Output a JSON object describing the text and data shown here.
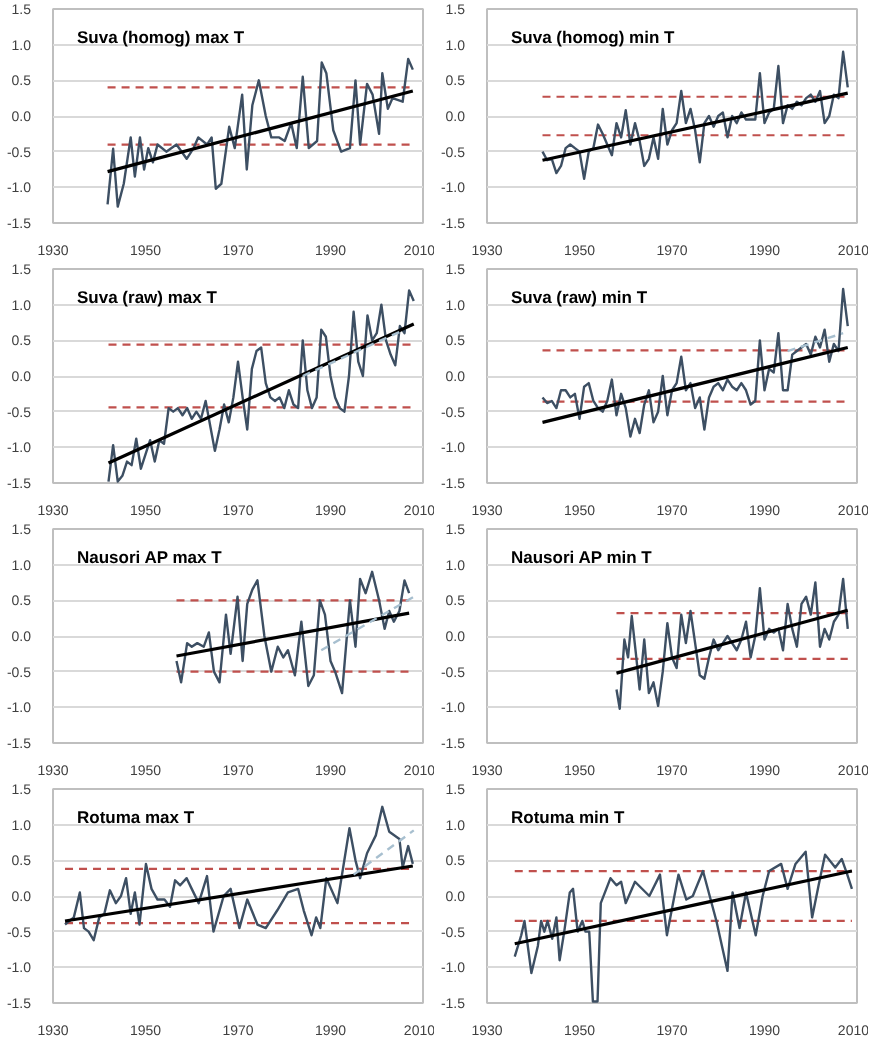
{
  "chart_data": [
    {
      "type": "line",
      "title": "Suva (homog) max T",
      "xlim": [
        1930,
        2010
      ],
      "xticks": [
        1930,
        1950,
        1970,
        1990,
        2010
      ],
      "ylim": [
        -1.5,
        1.5
      ],
      "yticks": [
        -1.5,
        {
          "value": -1,
          "label": "-1.0"
        },
        -0.5,
        {
          "value": 0,
          "label": "0.0"
        },
        0.5,
        {
          "value": 1,
          "label": "1.0"
        },
        1.5
      ],
      "grid": "y",
      "series": [
        {
          "color": "#3d4f63",
          "x": [
            1941.8,
            1943.0,
            1944.0,
            1945.3,
            1946.8,
            1947.7,
            1948.8,
            1949.7,
            1950.6,
            1951.6,
            1952.6,
            1954.5,
            1956.7,
            1958.9,
            1960.4,
            1961.4,
            1963.3,
            1964.3,
            1965.2,
            1966.4,
            1968.1,
            1969.3,
            1970.9,
            1971.9,
            1973.1,
            1974.5,
            1976.0,
            1977.2,
            1978.9,
            1980.1,
            1981.5,
            1982.7,
            1984.0,
            1985.3,
            1987.1,
            1988.1,
            1989.1,
            1990.6,
            1992.3,
            1994.2,
            1995.4,
            1996.4,
            1997.9,
            1999.1,
            2000.5,
            2001.2,
            2002.4,
            2003.4,
            2005.6,
            2006.8,
            2007.8
          ],
          "values": [
            -1.24,
            -0.46,
            -1.27,
            -0.95,
            -0.3,
            -0.85,
            -0.3,
            -0.75,
            -0.45,
            -0.65,
            -0.4,
            -0.5,
            -0.4,
            -0.6,
            -0.45,
            -0.3,
            -0.4,
            -0.3,
            -1.02,
            -0.95,
            -0.15,
            -0.45,
            0.3,
            -0.75,
            0.15,
            0.5,
            0.0,
            -0.3,
            -0.3,
            -0.35,
            -0.1,
            -0.45,
            0.55,
            -0.45,
            -0.35,
            0.75,
            0.6,
            -0.2,
            -0.5,
            -0.45,
            0.5,
            -0.4,
            0.45,
            0.3,
            -0.25,
            0.6,
            0.1,
            0.25,
            0.2,
            0.8,
            0.65
          ]
        },
        {
          "color": "#000000",
          "x": [
            1941.8,
            2007.8
          ],
          "values": [
            -0.78,
            0.35
          ]
        }
      ],
      "ref_lines": [
        {
          "axis": "y",
          "value": 0.4,
          "color": "#c0504d",
          "line_style": "dashed"
        },
        {
          "axis": "y",
          "value": -0.4,
          "color": "#c0504d",
          "line_style": "dashed"
        }
      ]
    },
    {
      "type": "line",
      "title": "Suva (homog) min T",
      "xlim": [
        1930,
        2010
      ],
      "xticks": [
        1930,
        1950,
        1970,
        1990,
        2010
      ],
      "ylim": [
        -1.5,
        1.5
      ],
      "yticks": [
        -1.5,
        {
          "value": -1,
          "label": "-1.0"
        },
        -0.5,
        {
          "value": 0,
          "label": "0.0"
        },
        0.5,
        {
          "value": 1,
          "label": "1.0"
        },
        1.5
      ],
      "grid": "y",
      "series": [
        {
          "color": "#3d4f63",
          "x": [
            1942,
            1943,
            1944,
            1945,
            1946,
            1947,
            1948,
            1949,
            1950,
            1951,
            1952,
            1953,
            1954,
            1955,
            1956,
            1957,
            1958,
            1959,
            1960,
            1961,
            1962,
            1963,
            1964,
            1965,
            1966,
            1967,
            1968,
            1969,
            1970,
            1971,
            1972,
            1973,
            1974,
            1975,
            1976,
            1977,
            1978,
            1979,
            1980,
            1981,
            1982,
            1983,
            1984,
            1985,
            1986,
            1987,
            1988,
            1989,
            1990,
            1991,
            1992,
            1993,
            1994,
            1995,
            1996,
            1997,
            1998,
            1999,
            2000,
            2001,
            2002,
            2003,
            2004,
            2005,
            2006,
            2007,
            2008
          ],
          "values": [
            -0.5,
            -0.62,
            -0.6,
            -0.8,
            -0.7,
            -0.45,
            -0.4,
            -0.45,
            -0.5,
            -0.88,
            -0.5,
            -0.45,
            -0.12,
            -0.25,
            -0.4,
            -0.55,
            -0.1,
            -0.3,
            0.08,
            -0.4,
            -0.1,
            -0.35,
            -0.7,
            -0.6,
            -0.3,
            -0.6,
            0.1,
            -0.4,
            -0.2,
            -0.1,
            0.35,
            -0.1,
            0.1,
            -0.2,
            -0.65,
            -0.1,
            0.0,
            -0.15,
            0.0,
            0.05,
            -0.3,
            0.0,
            -0.1,
            0.05,
            -0.05,
            -0.05,
            -0.05,
            0.6,
            -0.1,
            0.05,
            0.1,
            0.7,
            -0.1,
            0.15,
            0.1,
            0.2,
            0.15,
            0.25,
            0.3,
            0.2,
            0.35,
            -0.1,
            0.0,
            0.3,
            0.25,
            0.9,
            0.4
          ]
        },
        {
          "color": "#000000",
          "x": [
            1942,
            2008
          ],
          "values": [
            -0.62,
            0.32
          ]
        }
      ],
      "ref_lines": [
        {
          "axis": "y",
          "value": 0.27,
          "color": "#c0504d",
          "line_style": "dashed"
        },
        {
          "axis": "y",
          "value": -0.27,
          "color": "#c0504d",
          "line_style": "dashed"
        }
      ]
    },
    {
      "type": "line",
      "title": "Suva (raw) max T",
      "xlim": [
        1930,
        2010
      ],
      "xticks": [
        1930,
        1950,
        1970,
        1990,
        2010
      ],
      "ylim": [
        -1.5,
        1.5
      ],
      "yticks": [
        -1.5,
        {
          "value": -1,
          "label": "-1.0"
        },
        -0.5,
        {
          "value": 0,
          "label": "0.0"
        },
        0.5,
        {
          "value": 1,
          "label": "1.0"
        },
        1.5
      ],
      "grid": "y",
      "series": [
        {
          "color": "#3d4f63",
          "x": [
            1942,
            1943,
            1944,
            1945,
            1946,
            1947,
            1948,
            1949,
            1950,
            1951,
            1952,
            1953,
            1954,
            1955,
            1956,
            1957,
            1958,
            1959,
            1960,
            1961,
            1962,
            1963,
            1964,
            1965,
            1966,
            1967,
            1968,
            1969,
            1970,
            1971,
            1972,
            1973,
            1974,
            1975,
            1976,
            1977,
            1978,
            1979,
            1980,
            1981,
            1982,
            1983,
            1984,
            1985,
            1986,
            1987,
            1988,
            1989,
            1990,
            1991,
            1992,
            1993,
            1994,
            1995,
            1996,
            1997,
            1998,
            1999,
            2000,
            2001,
            2002,
            2003,
            2004,
            2005,
            2006,
            2007,
            2008
          ],
          "values": [
            -1.48,
            -0.97,
            -1.48,
            -1.4,
            -1.2,
            -1.25,
            -0.88,
            -1.3,
            -1.1,
            -0.9,
            -1.2,
            -0.9,
            -0.95,
            -0.45,
            -0.5,
            -0.45,
            -0.55,
            -0.45,
            -0.6,
            -0.5,
            -0.6,
            -0.35,
            -0.7,
            -1.05,
            -0.75,
            -0.4,
            -0.65,
            -0.3,
            0.2,
            -0.3,
            -0.75,
            0.1,
            0.35,
            0.4,
            -0.1,
            -0.3,
            -0.35,
            -0.3,
            -0.45,
            -0.2,
            -0.4,
            -0.45,
            0.5,
            -0.2,
            -0.45,
            -0.3,
            0.65,
            0.55,
            0.0,
            -0.3,
            -0.45,
            -0.5,
            0.0,
            0.9,
            0.2,
            0.0,
            0.85,
            0.5,
            0.6,
            1.0,
            0.5,
            0.3,
            0.15,
            0.7,
            0.6,
            1.2,
            1.05
          ]
        },
        {
          "color": "#000000",
          "x": [
            1942,
            2008
          ],
          "values": [
            -1.22,
            0.73
          ]
        },
        {
          "color": "#a7bfcf",
          "line_style": "dashed",
          "x": [
            1984,
            2006
          ],
          "values": [
            0.0,
            0.65
          ]
        }
      ],
      "ref_lines": [
        {
          "axis": "y",
          "value": 0.44,
          "color": "#c0504d",
          "line_style": "dashed"
        },
        {
          "axis": "y",
          "value": -0.44,
          "color": "#c0504d",
          "line_style": "dashed"
        }
      ]
    },
    {
      "type": "line",
      "title": "Suva (raw) min T",
      "xlim": [
        1930,
        2010
      ],
      "xticks": [
        1930,
        1950,
        1970,
        1990,
        2010
      ],
      "ylim": [
        -1.5,
        1.5
      ],
      "yticks": [
        -1.5,
        {
          "value": -1,
          "label": "-1.0"
        },
        -0.5,
        {
          "value": 0,
          "label": "0.0"
        },
        0.5,
        {
          "value": 1,
          "label": "1.0"
        },
        1.5
      ],
      "grid": "y",
      "series": [
        {
          "color": "#3d4f63",
          "x": [
            1942,
            1943,
            1944,
            1945,
            1946,
            1947,
            1948,
            1949,
            1950,
            1951,
            1952,
            1953,
            1954,
            1955,
            1956,
            1957,
            1958,
            1959,
            1960,
            1961,
            1962,
            1963,
            1964,
            1965,
            1966,
            1967,
            1968,
            1969,
            1970,
            1971,
            1972,
            1973,
            1974,
            1975,
            1976,
            1977,
            1978,
            1979,
            1980,
            1981,
            1982,
            1983,
            1984,
            1985,
            1986,
            1987,
            1988,
            1989,
            1990,
            1991,
            1992,
            1993,
            1994,
            1995,
            1996,
            1997,
            1998,
            1999,
            2000,
            2001,
            2002,
            2003,
            2004,
            2005,
            2006,
            2007,
            2008
          ],
          "values": [
            -0.3,
            -0.38,
            -0.35,
            -0.45,
            -0.2,
            -0.2,
            -0.3,
            -0.25,
            -0.6,
            -0.15,
            -0.1,
            -0.35,
            -0.45,
            -0.5,
            -0.35,
            -0.05,
            -0.55,
            -0.25,
            -0.45,
            -0.85,
            -0.6,
            -0.8,
            -0.4,
            -0.2,
            -0.65,
            -0.5,
            0.0,
            -0.55,
            -0.2,
            -0.1,
            0.27,
            -0.2,
            -0.1,
            -0.45,
            -0.3,
            -0.75,
            -0.3,
            -0.15,
            -0.1,
            -0.2,
            -0.05,
            -0.15,
            -0.2,
            -0.1,
            -0.2,
            -0.4,
            -0.35,
            0.5,
            -0.2,
            0.1,
            0.05,
            0.6,
            -0.2,
            -0.2,
            0.3,
            0.35,
            0.4,
            0.45,
            0.3,
            0.55,
            0.4,
            0.65,
            0.2,
            0.45,
            0.35,
            1.22,
            0.7
          ]
        },
        {
          "color": "#000000",
          "x": [
            1942,
            2008
          ],
          "values": [
            -0.65,
            0.4
          ]
        },
        {
          "color": "#a7bfcf",
          "line_style": "dashed",
          "x": [
            1995,
            2007
          ],
          "values": [
            0.35,
            0.6
          ]
        }
      ],
      "ref_lines": [
        {
          "axis": "y",
          "value": 0.36,
          "color": "#c0504d",
          "line_style": "dashed"
        },
        {
          "axis": "y",
          "value": -0.36,
          "color": "#c0504d",
          "line_style": "dashed"
        }
      ]
    },
    {
      "type": "line",
      "title": "Nausori AP  max T",
      "xlim": [
        1930,
        2010
      ],
      "xticks": [
        1930,
        1950,
        1970,
        1990,
        2010
      ],
      "ylim": [
        -1.5,
        1.5
      ],
      "yticks": [
        -1.5,
        {
          "value": -1,
          "label": "-1.0"
        },
        -0.5,
        {
          "value": 0,
          "label": "0.0"
        },
        0.5,
        {
          "value": 1,
          "label": "1.0"
        },
        1.5
      ],
      "grid": "y",
      "series": [
        {
          "color": "#3d4f63",
          "x": [
            1956.7,
            1957.7,
            1959.0,
            1960.0,
            1961.2,
            1962.6,
            1963.7,
            1964.8,
            1966.0,
            1967.4,
            1968.4,
            1969.9,
            1971.0,
            1972.0,
            1973.1,
            1974.2,
            1975.7,
            1977.2,
            1978.6,
            1979.8,
            1980.8,
            1982.3,
            1983.7,
            1985.2,
            1986.4,
            1987.7,
            1988.8,
            1990.0,
            1991.0,
            1992.5,
            1994.2,
            1995.4,
            1996.4,
            1997.6,
            1999.0,
            2000.5,
            2001.7,
            2002.7,
            2003.7,
            2004.9,
            2006.0,
            2007.0
          ],
          "values": [
            -0.35,
            -0.65,
            -0.1,
            -0.15,
            -0.1,
            -0.15,
            0.05,
            -0.5,
            -0.65,
            0.3,
            -0.25,
            0.55,
            -0.35,
            0.45,
            0.65,
            0.78,
            0.0,
            -0.5,
            -0.15,
            -0.3,
            -0.2,
            -0.55,
            0.2,
            -0.7,
            -0.55,
            0.5,
            0.3,
            -0.35,
            -0.5,
            -0.8,
            0.5,
            -0.15,
            0.8,
            0.6,
            0.9,
            0.5,
            0.1,
            0.35,
            0.2,
            0.35,
            0.78,
            0.6
          ]
        },
        {
          "color": "#000000",
          "x": [
            1956.7,
            2007.0
          ],
          "values": [
            -0.28,
            0.32
          ]
        },
        {
          "color": "#a7bfcf",
          "line_style": "dashed",
          "x": [
            1988,
            2008
          ],
          "values": [
            -0.2,
            0.55
          ]
        }
      ],
      "ref_lines": [
        {
          "axis": "y",
          "value": 0.5,
          "color": "#c0504d",
          "line_style": "dashed"
        },
        {
          "axis": "y",
          "value": -0.5,
          "color": "#c0504d",
          "line_style": "dashed"
        }
      ]
    },
    {
      "type": "line",
      "title": "Nausori AP min T",
      "xlim": [
        1930,
        2010
      ],
      "xticks": [
        1930,
        1950,
        1970,
        1990,
        2010
      ],
      "ylim": [
        -1.5,
        1.5
      ],
      "yticks": [
        -1.5,
        {
          "value": -1,
          "label": "-1.0"
        },
        -0.5,
        {
          "value": 0,
          "label": "0.0"
        },
        0.5,
        {
          "value": 1,
          "label": "1.0"
        },
        1.5
      ],
      "grid": "y",
      "series": [
        {
          "color": "#3d4f63",
          "x": [
            1958,
            1958.7,
            1959.7,
            1960.5,
            1961.3,
            1962.2,
            1963,
            1964,
            1965,
            1966,
            1967,
            1968,
            1969,
            1970,
            1971,
            1972,
            1973,
            1974,
            1975,
            1976,
            1977,
            1978,
            1979,
            1980,
            1981,
            1982,
            1983,
            1984,
            1985,
            1986,
            1987,
            1988,
            1989,
            1990,
            1991,
            1992,
            1993,
            1994,
            1995,
            1996,
            1997,
            1998,
            1999,
            2000,
            2001,
            2002,
            2003,
            2004,
            2005,
            2006,
            2007,
            2008
          ],
          "values": [
            -0.75,
            -1.02,
            -0.05,
            -0.3,
            0.28,
            -0.25,
            -0.75,
            -0.05,
            -0.8,
            -0.65,
            -0.98,
            -0.5,
            0.18,
            -0.3,
            -0.45,
            0.3,
            -0.1,
            0.35,
            -0.1,
            -0.55,
            -0.6,
            -0.3,
            -0.05,
            -0.2,
            -0.1,
            0.0,
            -0.1,
            -0.2,
            -0.05,
            0.2,
            -0.3,
            0.0,
            0.67,
            -0.05,
            0.1,
            0.05,
            0.1,
            -0.2,
            0.45,
            0.1,
            -0.15,
            0.45,
            0.55,
            0.3,
            0.75,
            -0.15,
            0.1,
            -0.05,
            0.2,
            0.3,
            0.8,
            0.1
          ]
        },
        {
          "color": "#000000",
          "x": [
            1958,
            2008
          ],
          "values": [
            -0.52,
            0.36
          ]
        }
      ],
      "ref_lines": [
        {
          "axis": "y",
          "value": 0.32,
          "color": "#c0504d",
          "line_style": "dashed"
        },
        {
          "axis": "y",
          "value": -0.32,
          "color": "#c0504d",
          "line_style": "dashed"
        }
      ]
    },
    {
      "type": "line",
      "title": "Rotuma max T",
      "xlim": [
        1930,
        2010
      ],
      "xticks": [
        1930,
        1950,
        1970,
        1990,
        2010
      ],
      "ylim": [
        -1.5,
        1.5
      ],
      "yticks": [
        -1.5,
        {
          "value": -1,
          "label": "-1.0"
        },
        -0.5,
        {
          "value": 0,
          "label": "0.0"
        },
        0.5,
        {
          "value": 1,
          "label": "1.0"
        },
        1.5
      ],
      "grid": "y",
      "series": [
        {
          "color": "#3d4f63",
          "x": [
            1932.6,
            1934.5,
            1935.8,
            1936.7,
            1937.7,
            1938.8,
            1940.0,
            1941.1,
            1942.3,
            1943.6,
            1944.7,
            1945.8,
            1946.8,
            1947.7,
            1948.7,
            1950.1,
            1951.3,
            1952.6,
            1954.1,
            1955.3,
            1956.4,
            1957.5,
            1958.9,
            1960.0,
            1961.5,
            1963.3,
            1964.7,
            1966.9,
            1968.4,
            1970.3,
            1972.0,
            1974.2,
            1976.0,
            1978.5,
            1980.8,
            1983.0,
            1984.2,
            1985.9,
            1986.9,
            1987.8,
            1989.1,
            1991.5,
            1994.1,
            1995.4,
            1996.4,
            1997.9,
            1999.8,
            2001.2,
            2002.7,
            2004.9,
            2005.6,
            2006.8,
            2007.8
          ],
          "values": [
            -0.4,
            -0.3,
            0.05,
            -0.45,
            -0.5,
            -0.62,
            -0.3,
            -0.25,
            0.08,
            -0.1,
            0.0,
            0.25,
            -0.25,
            0.05,
            -0.4,
            0.45,
            0.1,
            -0.05,
            -0.05,
            -0.15,
            0.22,
            0.15,
            0.25,
            0.1,
            -0.1,
            0.28,
            -0.5,
            0.0,
            0.1,
            -0.45,
            -0.05,
            -0.4,
            -0.45,
            -0.2,
            0.05,
            0.1,
            -0.2,
            -0.55,
            -0.3,
            -0.45,
            0.25,
            -0.1,
            0.95,
            0.5,
            0.25,
            0.6,
            0.85,
            1.25,
            0.9,
            0.8,
            0.4,
            0.7,
            0.45
          ]
        },
        {
          "color": "#000000",
          "x": [
            1932.6,
            2007.8
          ],
          "values": [
            -0.35,
            0.42
          ]
        },
        {
          "color": "#a7bfcf",
          "line_style": "dashed",
          "x": [
            1995,
            2008
          ],
          "values": [
            0.3,
            0.92
          ]
        }
      ],
      "ref_lines": [
        {
          "axis": "y",
          "value": 0.38,
          "color": "#c0504d",
          "line_style": "dashed"
        },
        {
          "axis": "y",
          "value": -0.38,
          "color": "#c0504d",
          "line_style": "dashed"
        }
      ]
    },
    {
      "type": "line",
      "title": "Rotuma min T",
      "xlim": [
        1930,
        2010
      ],
      "xticks": [
        1930,
        1950,
        1970,
        1990,
        2010
      ],
      "ylim": [
        -1.5,
        1.5
      ],
      "yticks": [
        -1.5,
        {
          "value": -1,
          "label": "-1.0"
        },
        -0.5,
        {
          "value": 0,
          "label": "0.0"
        },
        0.5,
        {
          "value": 1,
          "label": "1.0"
        },
        1.5
      ],
      "grid": "y",
      "series": [
        {
          "color": "#3d4f63",
          "x": [
            1936.0,
            1937.4,
            1938.1,
            1939.6,
            1941.0,
            1941.7,
            1942.4,
            1943.1,
            1944.1,
            1945.0,
            1945.7,
            1946.7,
            1947.9,
            1948.6,
            1949.6,
            1950.6,
            1951.3,
            1952.1,
            1952.9,
            1953.9,
            1954.6,
            1956.7,
            1958.0,
            1959.0,
            1960.0,
            1962.0,
            1965.1,
            1967.4,
            1968.9,
            1971.4,
            1973.1,
            1974.5,
            1976.7,
            1979.6,
            1982.0,
            1983.1,
            1984.6,
            1986.0,
            1988.1,
            1989.6,
            1991.0,
            1993.6,
            1995.0,
            1996.7,
            1998.9,
            2000.3,
            2001.7,
            2003.1,
            2005.3,
            2006.7,
            2007.9,
            2008.9
          ],
          "values": [
            -0.85,
            -0.55,
            -0.35,
            -1.08,
            -0.7,
            -0.35,
            -0.5,
            -0.35,
            -0.6,
            -0.3,
            -0.9,
            -0.5,
            0.05,
            0.1,
            -0.5,
            -0.35,
            -0.5,
            -0.5,
            -1.48,
            -1.48,
            -0.1,
            0.25,
            0.15,
            0.2,
            -0.1,
            0.2,
            0.0,
            0.3,
            -0.55,
            0.3,
            -0.05,
            0.0,
            0.35,
            -0.35,
            -1.05,
            0.05,
            -0.45,
            0.05,
            -0.55,
            0.0,
            0.35,
            0.45,
            0.1,
            0.45,
            0.62,
            -0.3,
            0.15,
            0.58,
            0.4,
            0.52,
            0.3,
            0.1
          ]
        },
        {
          "color": "#000000",
          "x": [
            1936.0,
            2008.9
          ],
          "values": [
            -0.67,
            0.35
          ]
        }
      ],
      "ref_lines": [
        {
          "axis": "y",
          "value": 0.35,
          "color": "#c0504d",
          "line_style": "dashed"
        },
        {
          "axis": "y",
          "value": -0.35,
          "color": "#c0504d",
          "line_style": "dashed"
        }
      ]
    }
  ]
}
